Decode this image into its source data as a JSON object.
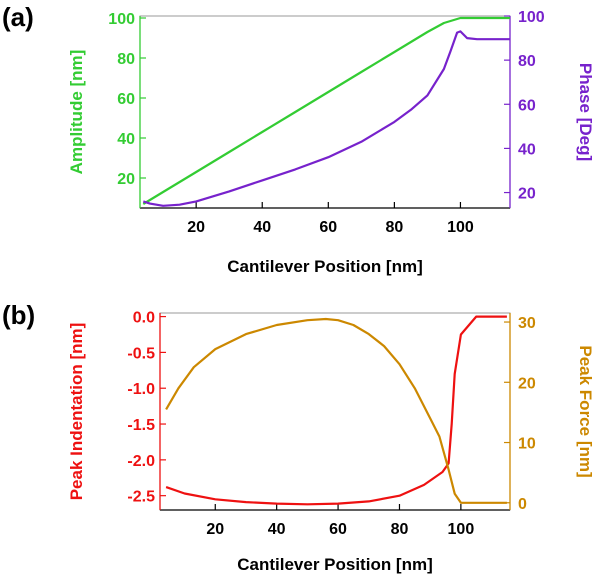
{
  "chart_data": [
    {
      "panel_label": "(a)",
      "type": "line",
      "xlabel": "Cantilever Position [nm]",
      "xlim": [
        3,
        115
      ],
      "xticks": [
        20,
        40,
        60,
        80,
        100
      ],
      "left_axis": {
        "label": "Amplitude [nm]",
        "color": "#33CC33",
        "ylim": [
          5,
          101
        ],
        "ticks": [
          20,
          40,
          60,
          80,
          100
        ]
      },
      "right_axis": {
        "label": "Phase [Deg]",
        "color": "#7722CC",
        "ylim": [
          13,
          100
        ],
        "ticks": [
          20,
          40,
          60,
          80,
          100
        ]
      },
      "series": [
        {
          "axis": "left",
          "color": "#33CC33",
          "points": [
            [
              4,
              7
            ],
            [
              10,
              13
            ],
            [
              20,
              23
            ],
            [
              30,
              33
            ],
            [
              40,
              43
            ],
            [
              50,
              53
            ],
            [
              60,
              63
            ],
            [
              70,
              73
            ],
            [
              80,
              83
            ],
            [
              90,
              93
            ],
            [
              95,
              97.5
            ],
            [
              100,
              100
            ],
            [
              105,
              100
            ],
            [
              110,
              100
            ],
            [
              115,
              100
            ]
          ]
        },
        {
          "axis": "right",
          "color": "#7722CC",
          "points": [
            [
              4,
              16
            ],
            [
              6,
              15
            ],
            [
              10,
              14
            ],
            [
              15,
              14.5
            ],
            [
              20,
              16
            ],
            [
              30,
              20.5
            ],
            [
              40,
              25.5
            ],
            [
              50,
              30.5
            ],
            [
              60,
              36
            ],
            [
              70,
              43
            ],
            [
              80,
              52
            ],
            [
              85,
              57.5
            ],
            [
              90,
              64
            ],
            [
              95,
              76
            ],
            [
              97,
              84
            ],
            [
              99,
              92.5
            ],
            [
              100,
              93
            ],
            [
              102,
              90
            ],
            [
              105,
              89.5
            ],
            [
              110,
              89.5
            ],
            [
              115,
              89.5
            ]
          ]
        }
      ]
    },
    {
      "panel_label": "(b)",
      "type": "line",
      "xlabel": "Cantilever Position [nm]",
      "xlim": [
        2,
        116
      ],
      "xticks": [
        20,
        40,
        60,
        80,
        100
      ],
      "left_axis": {
        "label": "Peak Indentation [nm]",
        "color": "#EE1111",
        "ylim": [
          -2.7,
          0.05
        ],
        "ticks": [
          "0.0",
          "-0.5",
          "-1.0",
          "-1.5",
          "-2.0",
          "-2.5"
        ]
      },
      "right_axis": {
        "label": "Peak Force [nm]",
        "color": "#CC8800",
        "ylim": [
          -1.2,
          31.5
        ],
        "ticks": [
          0,
          10,
          20,
          30
        ]
      },
      "series": [
        {
          "axis": "left",
          "color": "#EE1111",
          "points": [
            [
              4,
              -2.38
            ],
            [
              10,
              -2.47
            ],
            [
              20,
              -2.55
            ],
            [
              30,
              -2.59
            ],
            [
              40,
              -2.61
            ],
            [
              50,
              -2.62
            ],
            [
              60,
              -2.61
            ],
            [
              70,
              -2.58
            ],
            [
              80,
              -2.5
            ],
            [
              88,
              -2.35
            ],
            [
              94,
              -2.17
            ],
            [
              96,
              -2.05
            ],
            [
              97,
              -1.5
            ],
            [
              98,
              -0.8
            ],
            [
              100,
              -0.25
            ],
            [
              105,
              0.0
            ],
            [
              110,
              0.0
            ],
            [
              115,
              0.0
            ]
          ]
        },
        {
          "axis": "right",
          "color": "#CC8800",
          "points": [
            [
              4,
              15.5
            ],
            [
              8,
              19
            ],
            [
              13,
              22.5
            ],
            [
              20,
              25.5
            ],
            [
              30,
              28
            ],
            [
              40,
              29.5
            ],
            [
              50,
              30.3
            ],
            [
              56,
              30.5
            ],
            [
              60,
              30.3
            ],
            [
              65,
              29.5
            ],
            [
              70,
              28
            ],
            [
              75,
              26
            ],
            [
              80,
              23
            ],
            [
              85,
              19
            ],
            [
              90,
              14
            ],
            [
              93,
              11
            ],
            [
              96,
              5.5
            ],
            [
              98,
              1.5
            ],
            [
              100,
              0
            ],
            [
              105,
              0
            ],
            [
              110,
              0
            ],
            [
              115,
              0
            ]
          ]
        }
      ]
    }
  ]
}
